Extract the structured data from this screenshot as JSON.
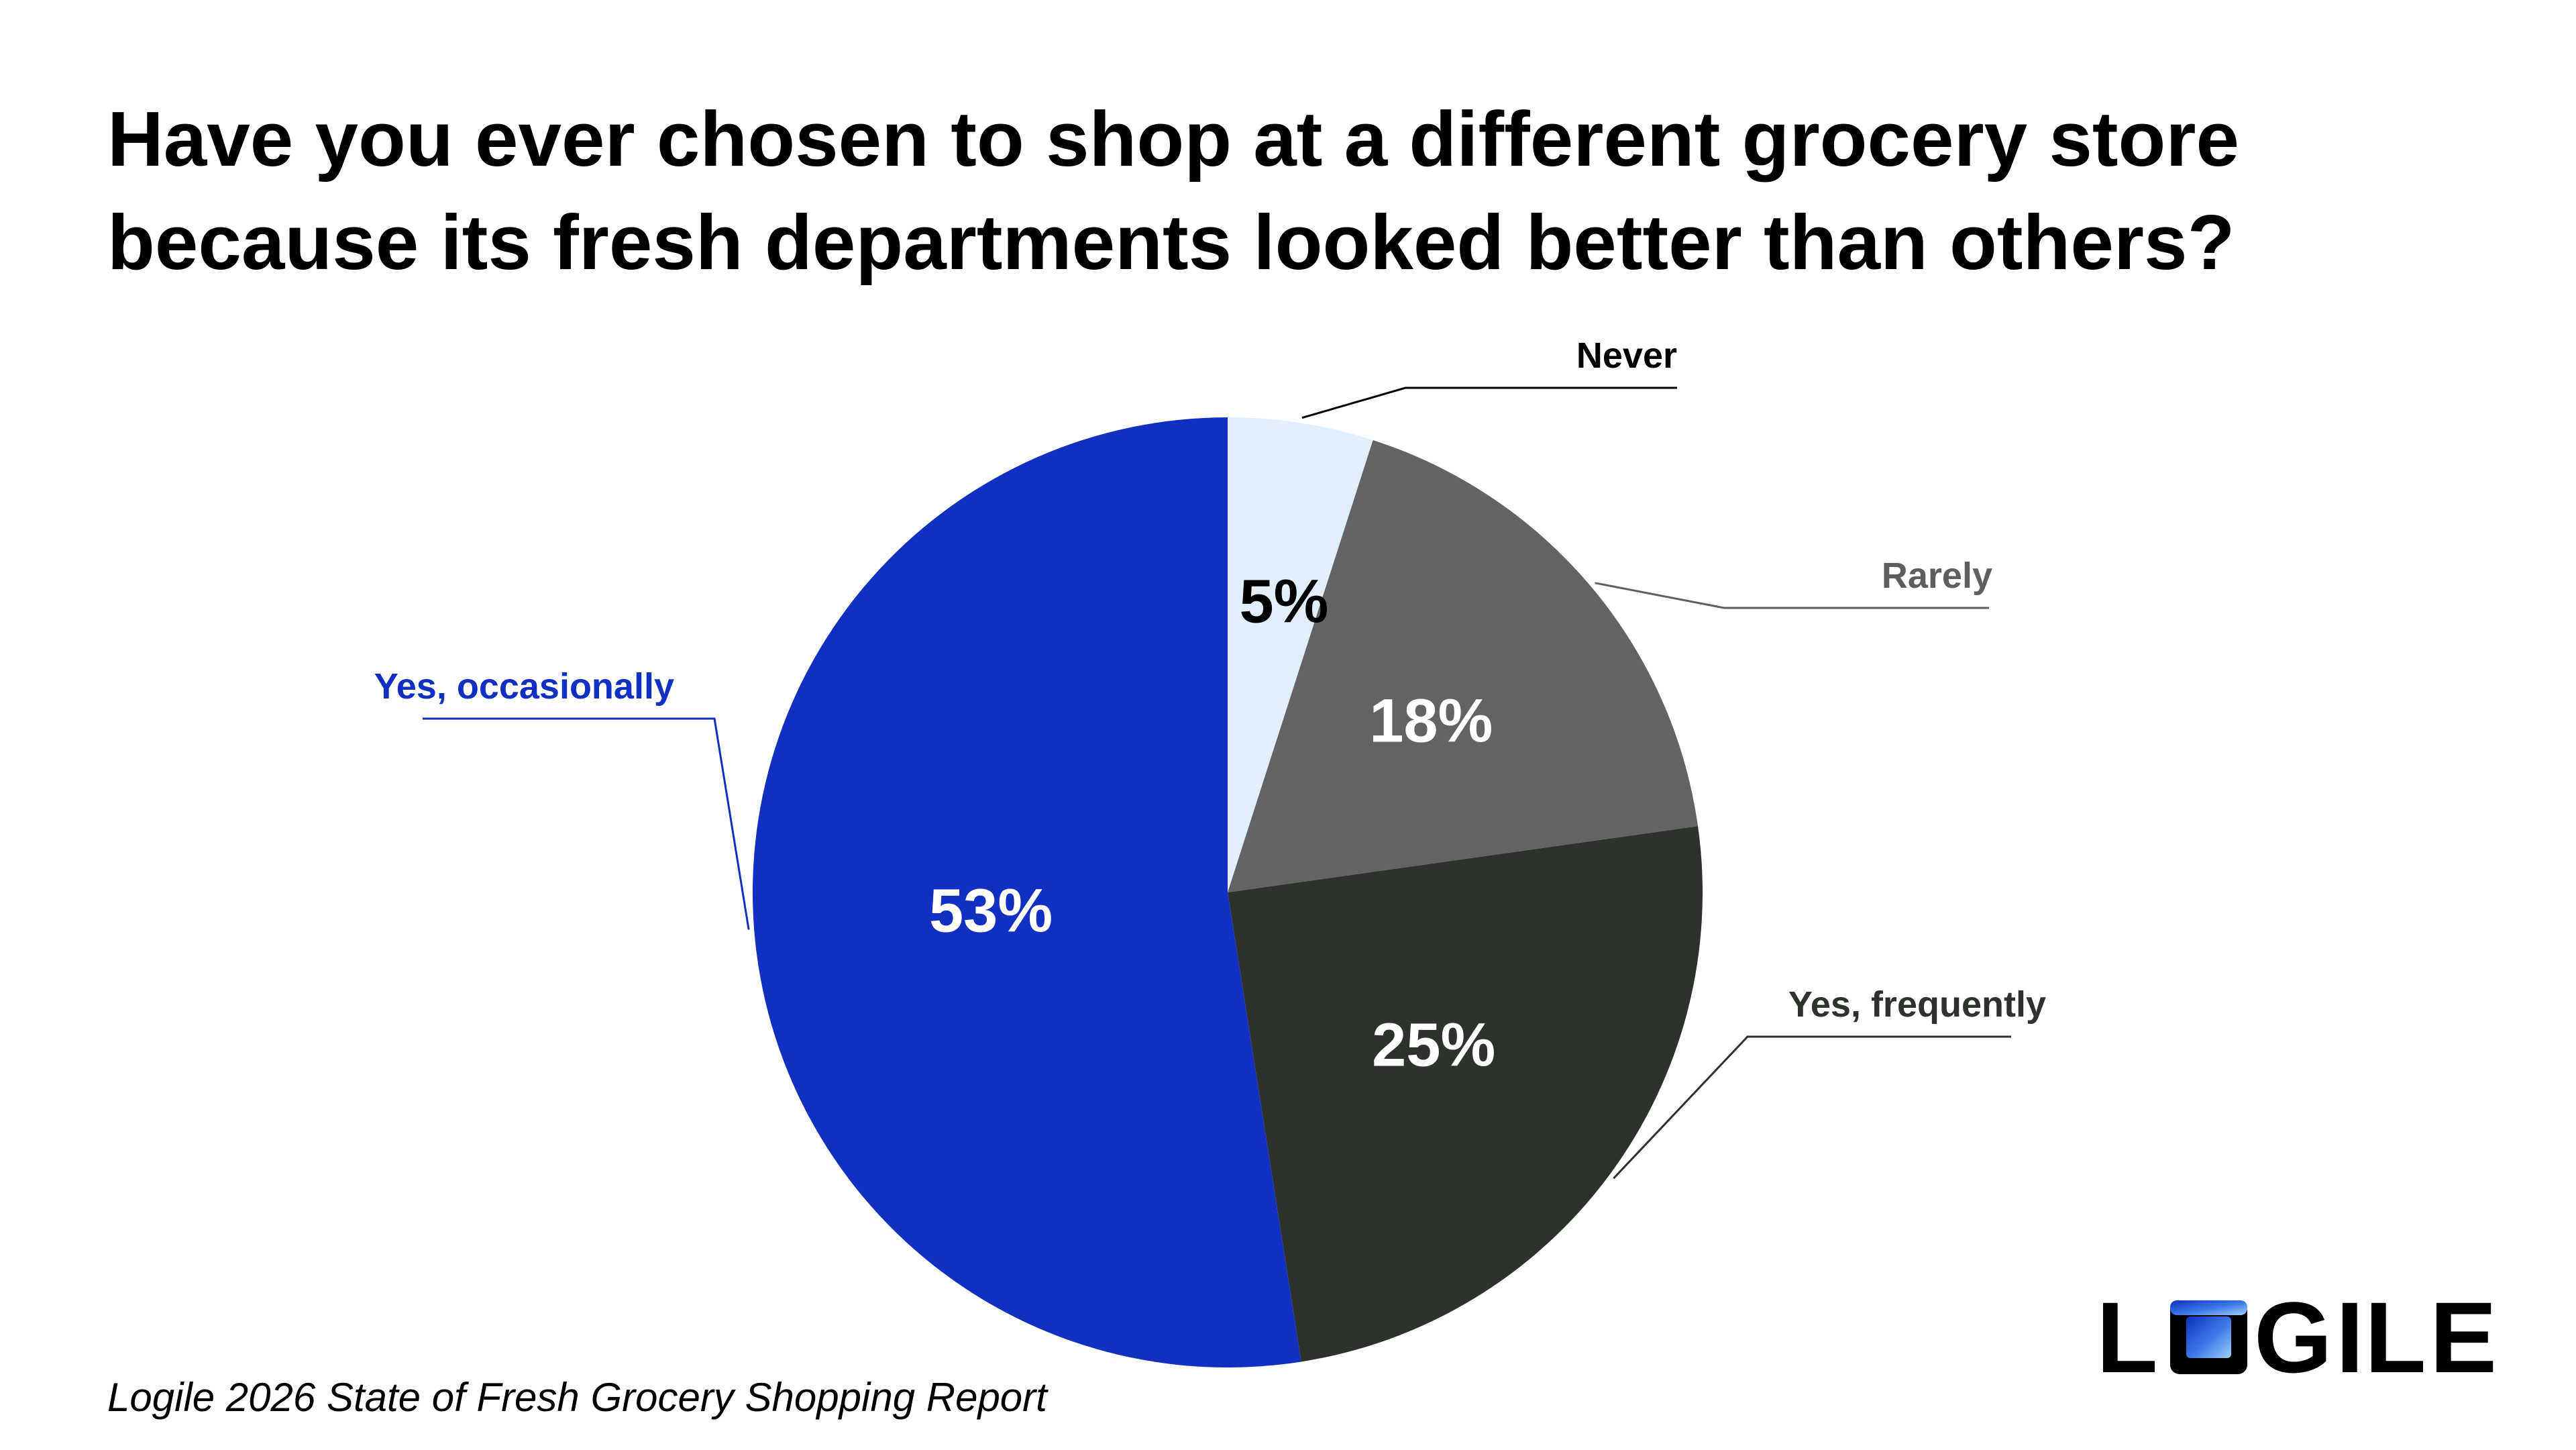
{
  "title": {
    "line1": "Have you ever chosen to shop at a different grocery store",
    "line2": "because its fresh departments looked better than others?"
  },
  "source": "Logile 2026 State of Fresh Grocery Shopping Report",
  "logo": {
    "text": "LOGILE",
    "letters": [
      "L",
      "O",
      "G",
      "I",
      "L",
      "E"
    ]
  },
  "chart_data": {
    "type": "pie",
    "start_angle_deg": 0,
    "direction": "clockwise",
    "slices": [
      {
        "label": "Never",
        "value": 5,
        "display": "5%",
        "color": "#E1EEFB",
        "label_color": "#000000",
        "value_color": "#000000"
      },
      {
        "label": "Rarely",
        "value": 18,
        "display": "18%",
        "color": "#636363",
        "label_color": "#5E5E5E",
        "value_color": "#FFFFFF"
      },
      {
        "label": "Yes, frequently",
        "value": 25,
        "display": "25%",
        "color": "#2E322D",
        "label_color": "#2E322D",
        "value_color": "#FFFFFF"
      },
      {
        "label": "Yes, occasionally",
        "value": 53,
        "display": "53%",
        "color": "#1130C2",
        "label_color": "#1130C2",
        "value_color": "#FFFFFF"
      }
    ]
  }
}
